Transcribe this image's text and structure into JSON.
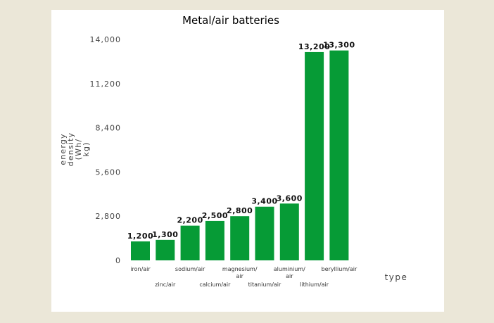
{
  "chart_data": {
    "type": "bar",
    "title": "Metal/air batteries",
    "xlabel": "type",
    "ylabel": [
      "energy",
      "density",
      "(Wh/",
      "kg)"
    ],
    "ylim": [
      0,
      14000
    ],
    "yticks": [
      "0",
      "2,800",
      "5,600",
      "8,400",
      "11,200",
      "14,000"
    ],
    "ytick_values": [
      0,
      2800,
      5600,
      8400,
      11200,
      14000
    ],
    "categories": [
      [
        "iron/air"
      ],
      [
        "zinc/air"
      ],
      [
        "sodium/air"
      ],
      [
        "calcium/air"
      ],
      [
        "magnesium/",
        "air"
      ],
      [
        "titanium/air"
      ],
      [
        "aluminium/",
        "air"
      ],
      [
        "lithium/air"
      ],
      [
        "beryllium/air"
      ]
    ],
    "values": [
      1200,
      1300,
      2200,
      2500,
      2800,
      3400,
      3600,
      13200,
      13300
    ],
    "data_labels": [
      "1,200",
      "1,300",
      "2,200",
      "2,500",
      "2,800",
      "3,400",
      "3,600",
      "13,200",
      "13,300"
    ],
    "grid": false,
    "legend": "none",
    "bar_color": "#069b36"
  }
}
